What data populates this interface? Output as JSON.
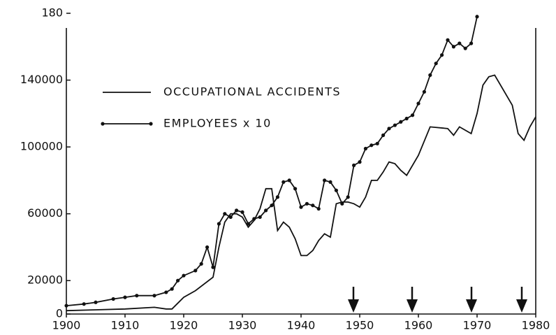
{
  "chart_data": {
    "type": "line",
    "xlim": [
      1900,
      1980
    ],
    "xticks": [
      1900,
      1910,
      1920,
      1930,
      1940,
      1950,
      1960,
      1970,
      1980
    ],
    "ylim": [
      0,
      180000
    ],
    "yticks": [
      0,
      20000,
      60000,
      100000,
      140000,
      {
        "value": 180000,
        "label": "180"
      }
    ],
    "series": [
      {
        "name": "OCCUPATIONAL ACCIDENTS",
        "color": "#111111",
        "markers": false,
        "x": [
          1900,
          1905,
          1910,
          1915,
          1917,
          1918,
          1920,
          1922,
          1925,
          1926,
          1927,
          1928,
          1929,
          1930,
          1931,
          1932,
          1933,
          1934,
          1935,
          1936,
          1937,
          1938,
          1939,
          1940,
          1941,
          1942,
          1943,
          1944,
          1945,
          1946,
          1947,
          1948,
          1949,
          1950,
          1951,
          1952,
          1953,
          1954,
          1955,
          1956,
          1957,
          1958,
          1960,
          1962,
          1965,
          1966,
          1967,
          1969,
          1970,
          1971,
          1972,
          1973,
          1976,
          1977,
          1978,
          1979,
          1980
        ],
        "values": [
          2000,
          2500,
          3000,
          4000,
          3000,
          3000,
          10000,
          14000,
          22000,
          40000,
          55000,
          60000,
          60000,
          58000,
          52000,
          56000,
          63000,
          75000,
          75000,
          50000,
          55000,
          52000,
          45000,
          35000,
          35000,
          38000,
          44000,
          48000,
          46000,
          66000,
          67000,
          67000,
          66000,
          64000,
          70000,
          80000,
          80000,
          85000,
          91000,
          90000,
          86000,
          83000,
          95000,
          112000,
          111000,
          107000,
          112000,
          108000,
          120000,
          137000,
          142000,
          143000,
          125000,
          108000,
          104000,
          112000,
          118000
        ]
      },
      {
        "name": "EMPLOYEES x 10",
        "color": "#111111",
        "markers": true,
        "x": [
          1900,
          1903,
          1905,
          1908,
          1910,
          1912,
          1915,
          1917,
          1918,
          1919,
          1920,
          1922,
          1923,
          1924,
          1925,
          1926,
          1927,
          1928,
          1929,
          1930,
          1931,
          1932,
          1933,
          1934,
          1935,
          1936,
          1937,
          1938,
          1939,
          1940,
          1941,
          1942,
          1943,
          1944,
          1945,
          1946,
          1947,
          1948,
          1949,
          1950,
          1951,
          1952,
          1953,
          1954,
          1955,
          1956,
          1957,
          1958,
          1959,
          1960,
          1961,
          1962,
          1963,
          1964,
          1965,
          1966,
          1967,
          1968,
          1969,
          1970
        ],
        "values": [
          5000,
          6000,
          7000,
          9000,
          10000,
          11000,
          11000,
          13000,
          15000,
          20000,
          23000,
          26000,
          30000,
          40000,
          28000,
          54000,
          60000,
          58000,
          62000,
          61000,
          54000,
          57000,
          58000,
          62000,
          65000,
          70000,
          79000,
          80000,
          75000,
          64000,
          66000,
          65000,
          63000,
          80000,
          79000,
          74000,
          66000,
          70000,
          89000,
          91000,
          99000,
          101000,
          102000,
          107000,
          111000,
          113000,
          115000,
          117000,
          119000,
          126000,
          133000,
          143000,
          150000,
          155000,
          164000,
          160000,
          162000,
          159000,
          162000,
          178000
        ]
      }
    ],
    "legend": "upper left"
  }
}
